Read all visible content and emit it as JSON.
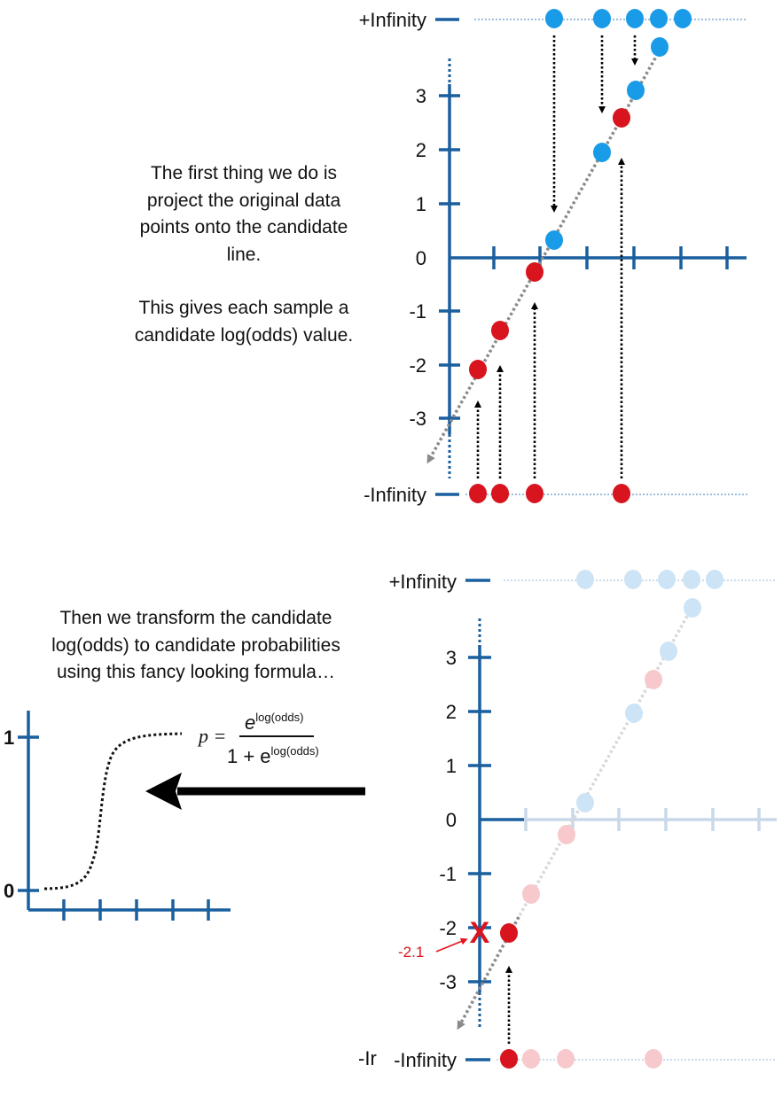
{
  "top_panel": {
    "caption_line1": "The first thing we do is",
    "caption_line2": "project the original data",
    "caption_line3": "points onto the candidate",
    "caption_line4": "line.",
    "caption_line5": "This gives each sample a",
    "caption_line6": "candidate log(odds) value.",
    "label_pos_inf": "+Infinity",
    "label_neg_inf": "-Infinity",
    "y_ticks": [
      "3",
      "2",
      "1",
      "0",
      "-1",
      "-2",
      "-3"
    ]
  },
  "bottom_panel": {
    "caption_line1": "Then we transform the candidate",
    "caption_line2": "log(odds) to candidate probabilities",
    "caption_line3": "using this fancy looking formula…",
    "label_pos_inf": "+Infinity",
    "label_neg_inf": "-Infinity",
    "label_neg_inf_fragment": "-Ir",
    "y_ticks": [
      "3",
      "2",
      "1",
      "0",
      "-1",
      "-2",
      "-3"
    ],
    "annotation_value": "-2.1",
    "x_mark": "X"
  },
  "formula": {
    "lhs": "p =",
    "num_base": "e",
    "num_exp": "log(odds)",
    "den_prefix": "1 + e",
    "den_exp": "log(odds)"
  },
  "sigmoid_axis": {
    "label_one": "1",
    "label_zero": "0"
  },
  "colors": {
    "axis": "#1a5f9e",
    "blue_point": "#1a9be8",
    "red_point": "#d8141e",
    "faded_blue": "#cde4f7",
    "faded_red": "#f7c9cc",
    "line_gray": "#8a8a8a",
    "annotation_red": "#e0141e"
  }
}
